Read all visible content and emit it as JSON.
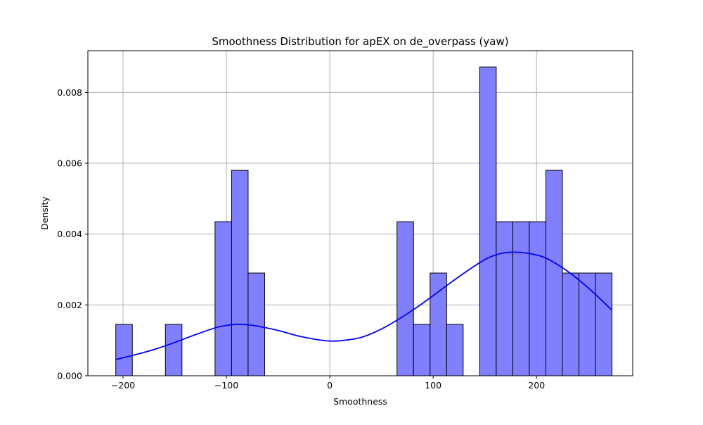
{
  "chart_data": {
    "type": "bar",
    "subtype": "histogram-with-kde",
    "title": "Smoothness Distribution for apEX on de_overpass (yaw)",
    "xlabel": "Smoothness",
    "ylabel": "Density",
    "xlim": [
      -234,
      293
    ],
    "ylim": [
      0,
      0.00918
    ],
    "xticks": [
      -200,
      -100,
      0,
      100,
      200
    ],
    "xtick_labels": [
      "−200",
      "−100",
      "0",
      "100",
      "200"
    ],
    "yticks": [
      0,
      0.002,
      0.004,
      0.006,
      0.008
    ],
    "ytick_labels": [
      "0.000",
      "0.002",
      "0.004",
      "0.006",
      "0.008"
    ],
    "grid": true,
    "legend": "none",
    "bin_edges": [
      -207,
      -191,
      -175,
      -159,
      -143,
      -127,
      -111,
      -95,
      -79,
      -63,
      -47,
      -31,
      -15,
      1,
      17,
      33,
      49,
      65,
      81,
      97,
      113,
      129,
      145,
      161,
      177,
      193,
      209,
      225,
      241,
      257,
      273
    ],
    "densities": [
      0.00145,
      0,
      0,
      0.00145,
      0,
      0,
      0.00435,
      0.0058,
      0.0029,
      0,
      0,
      0,
      0,
      0,
      0,
      0,
      0,
      0.00435,
      0.00145,
      0.0029,
      0.00145,
      0,
      0.00872,
      0.00435,
      0.00435,
      0.00435,
      0.0058,
      0.0029,
      0.0029,
      0.0029
    ],
    "kde": {
      "name": "KDE",
      "x": [
        -207,
        -190,
        -170,
        -150,
        -130,
        -110,
        -100,
        -90,
        -80,
        -70,
        -50,
        -30,
        -10,
        0,
        10,
        30,
        50,
        70,
        90,
        110,
        130,
        150,
        165,
        180,
        195,
        210,
        230,
        250,
        273
      ],
      "y": [
        0.00046,
        0.00058,
        0.00074,
        0.00094,
        0.00116,
        0.00136,
        0.00142,
        0.00145,
        0.00144,
        0.0014,
        0.00128,
        0.00112,
        0.00101,
        0.00098,
        0.00099,
        0.00108,
        0.00132,
        0.00166,
        0.00205,
        0.00248,
        0.0029,
        0.00328,
        0.00345,
        0.00349,
        0.00344,
        0.00331,
        0.00295,
        0.00248,
        0.00185
      ]
    },
    "colors": {
      "bar_fill": "#8080ff",
      "bar_edge": "#000000",
      "kde_line": "#0000ff",
      "grid": "#b0b0b0"
    }
  }
}
